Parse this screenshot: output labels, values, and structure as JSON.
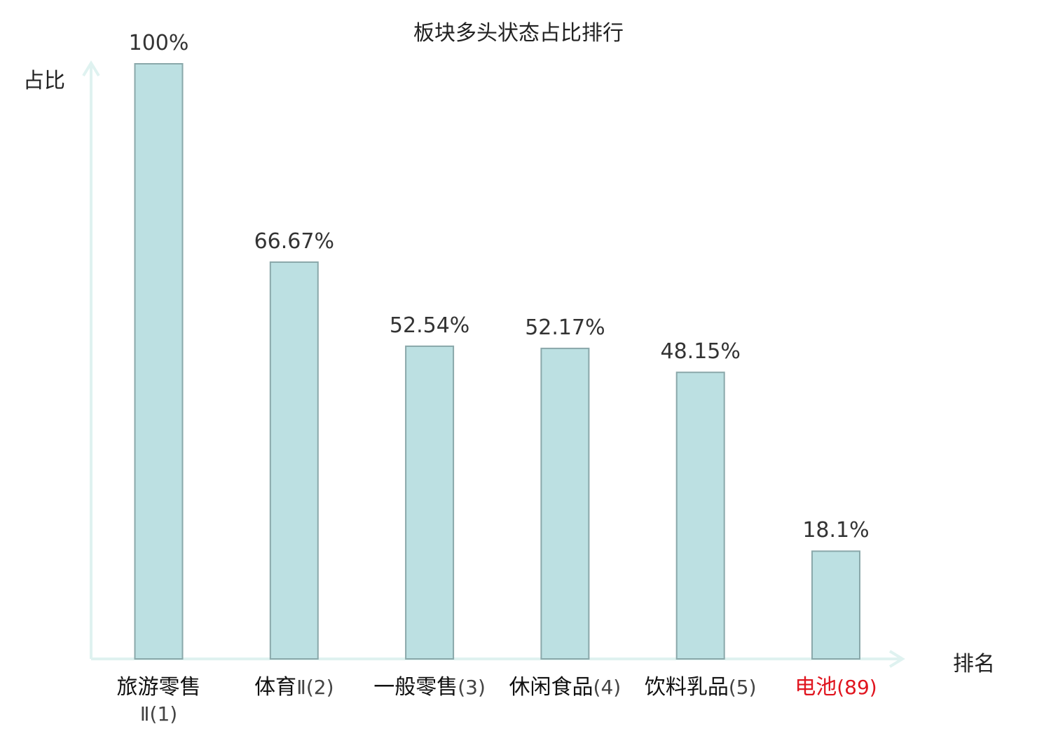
{
  "chart_data": {
    "type": "bar",
    "title": "板块多头状态占比排行",
    "ylabel": "占比",
    "xlabel": "排名",
    "ylim": [
      0,
      100
    ],
    "grid": false,
    "categories": [
      {
        "name": "旅游零售",
        "rank": "Ⅱ(1)",
        "highlight": false
      },
      {
        "name": "体育",
        "rank": "Ⅱ(2)",
        "highlight": false
      },
      {
        "name": "一般零售",
        "rank": "(3)",
        "highlight": false
      },
      {
        "name": "休闲食品",
        "rank": "(4)",
        "highlight": false
      },
      {
        "name": "饮料乳品",
        "rank": "(5)",
        "highlight": false
      },
      {
        "name": "电池",
        "rank": "(89)",
        "highlight": true
      }
    ],
    "values": [
      100,
      66.67,
      52.54,
      52.17,
      48.15,
      18.1
    ],
    "value_labels": [
      "100%",
      "66.67%",
      "52.54%",
      "52.17%",
      "48.15%",
      "18.1%"
    ],
    "bar_color": "#bce0e2",
    "bar_stroke": "#8aa8aa",
    "axis_color": "#dff2f0",
    "highlight_color": "#e0141e"
  }
}
